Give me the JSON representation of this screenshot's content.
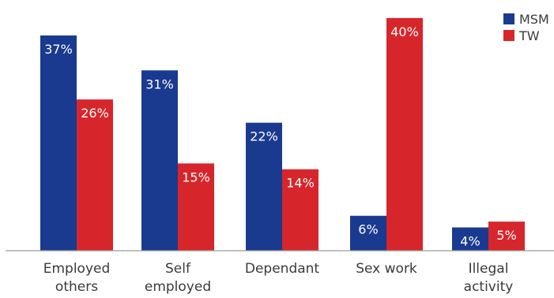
{
  "chart_data": {
    "type": "bar",
    "categories": [
      [
        "Employed",
        "others"
      ],
      [
        "Self",
        "employed"
      ],
      [
        "Dependant"
      ],
      [
        "Sex work"
      ],
      [
        "Illegal",
        "activity"
      ]
    ],
    "series": [
      {
        "name": "MSM",
        "color": "#1a3a8f",
        "values": [
          37,
          31,
          22,
          6,
          4
        ]
      },
      {
        "name": "TW",
        "color": "#d7262b",
        "values": [
          26,
          15,
          14,
          40,
          5
        ]
      }
    ],
    "value_suffix": "%",
    "ylim": [
      0,
      41.2
    ],
    "legend_position": "top-right",
    "grid": false,
    "axis_color": "#9a9a9a"
  }
}
